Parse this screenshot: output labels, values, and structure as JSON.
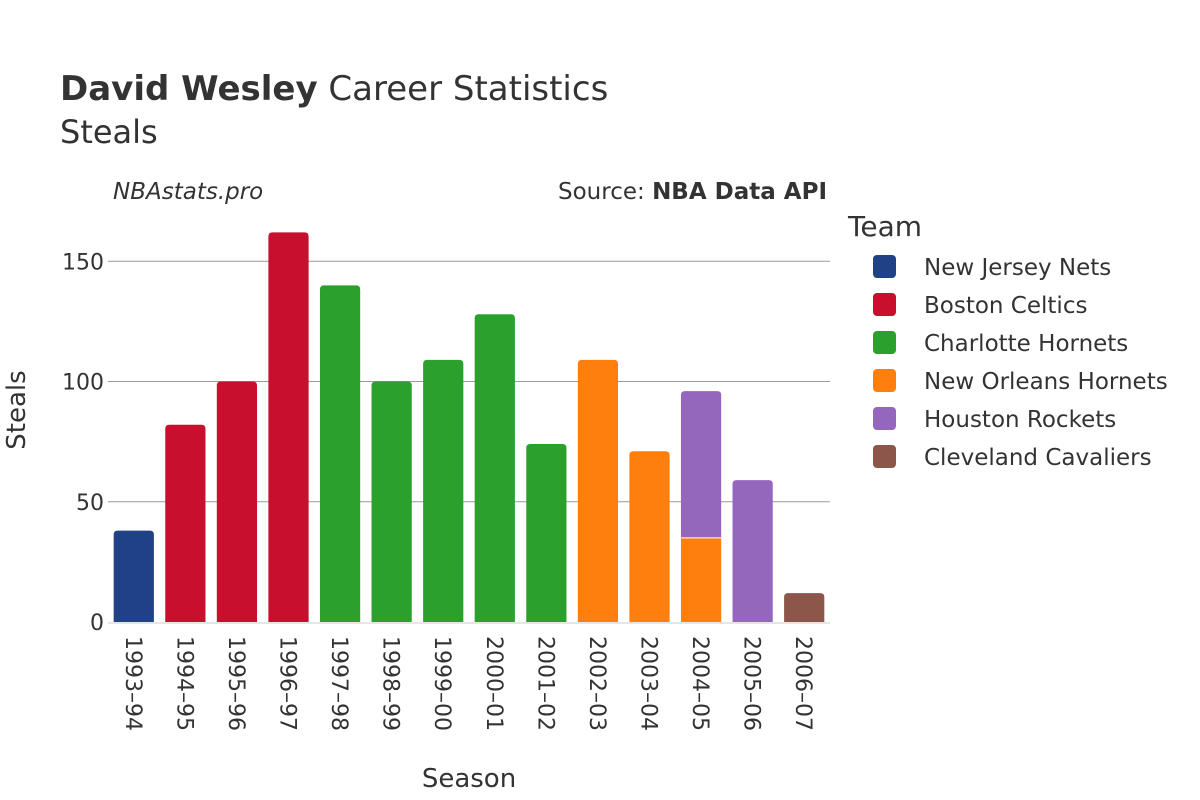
{
  "chart_data": {
    "type": "bar",
    "title_bold": "David Wesley",
    "title_rest": " Career Statistics",
    "subtitle": "Steals",
    "watermark": "NBAstats.pro",
    "source_prefix": "Source: ",
    "source_name": "NBA Data API",
    "xlabel": "Season",
    "ylabel": "Steals",
    "ylim": [
      0,
      168
    ],
    "yticks": [
      0,
      50,
      100,
      150
    ],
    "grid": true,
    "legend_title": "Team",
    "legend_position": "right",
    "categories": [
      "1993–94",
      "1994–95",
      "1995–96",
      "1996–97",
      "1997–98",
      "1998–99",
      "1999–00",
      "2000–01",
      "2001–02",
      "2002–03",
      "2003–04",
      "2004–05",
      "2005–06",
      "2006–07"
    ],
    "series": [
      {
        "name": "New Jersey Nets",
        "color": "#1f4287",
        "values": [
          38,
          0,
          0,
          0,
          0,
          0,
          0,
          0,
          0,
          0,
          0,
          0,
          0,
          0
        ]
      },
      {
        "name": "Boston Celtics",
        "color": "#c8102e",
        "values": [
          0,
          82,
          100,
          162,
          0,
          0,
          0,
          0,
          0,
          0,
          0,
          0,
          0,
          0
        ]
      },
      {
        "name": "Charlotte Hornets",
        "color": "#2ca02c",
        "values": [
          0,
          0,
          0,
          0,
          140,
          100,
          109,
          128,
          74,
          0,
          0,
          0,
          0,
          0
        ]
      },
      {
        "name": "New Orleans Hornets",
        "color": "#ff7f0e",
        "values": [
          0,
          0,
          0,
          0,
          0,
          0,
          0,
          0,
          0,
          109,
          71,
          35,
          0,
          0
        ]
      },
      {
        "name": "Houston Rockets",
        "color": "#9467bd",
        "values": [
          0,
          0,
          0,
          0,
          0,
          0,
          0,
          0,
          0,
          0,
          0,
          61,
          59,
          0
        ]
      },
      {
        "name": "Cleveland Cavaliers",
        "color": "#8c564b",
        "values": [
          0,
          0,
          0,
          0,
          0,
          0,
          0,
          0,
          0,
          0,
          0,
          0,
          0,
          12
        ]
      }
    ]
  }
}
